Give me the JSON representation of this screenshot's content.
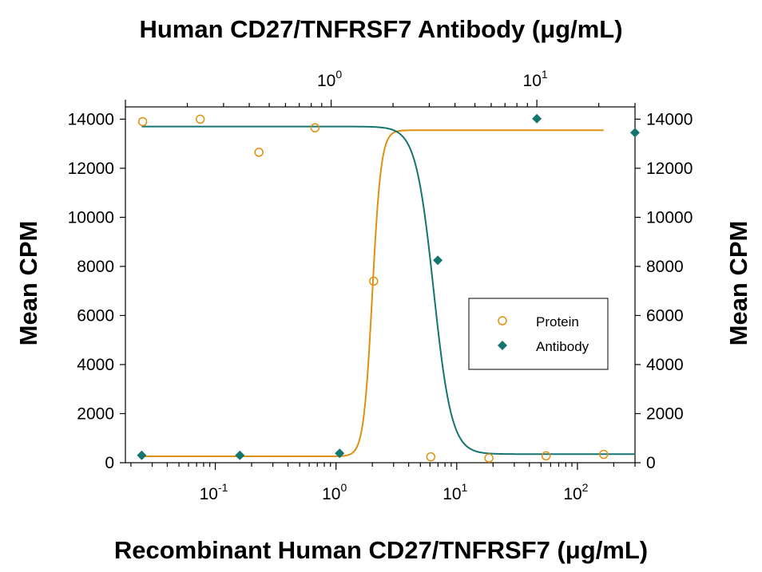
{
  "chart_data": {
    "type": "scatter",
    "title": "Human CD27/TNFRSF7 Antibody (μg/mL)",
    "xlabel": "Recombinant Human CD27/TNFRSF7 (μg/mL)",
    "ylabel": "Mean CPM",
    "ylabel_right": "Mean CPM",
    "x_scale": "log",
    "xlim": [
      0.018,
      300
    ],
    "x_ticks": [
      {
        "base": "10",
        "exp": "-1",
        "value": 0.1
      },
      {
        "base": "10",
        "exp": "0",
        "value": 1
      },
      {
        "base": "10",
        "exp": "1",
        "value": 10
      },
      {
        "base": "10",
        "exp": "2",
        "value": 100
      }
    ],
    "x_top_scale": "log",
    "xlim_top": [
      0.1,
      30
    ],
    "x_top_ticks": [
      {
        "base": "10",
        "exp": "0",
        "value": 1
      },
      {
        "base": "10",
        "exp": "1",
        "value": 10
      }
    ],
    "ylim": [
      0,
      14500
    ],
    "y_ticks": [
      "0",
      "2000",
      "4000",
      "6000",
      "8000",
      "10000",
      "12000",
      "14000"
    ],
    "y_tick_values": [
      0,
      2000,
      4000,
      6000,
      8000,
      10000,
      12000,
      14000
    ],
    "legend_position": "right-middle",
    "grid": false,
    "series": [
      {
        "name": "Protein",
        "axis": "bottom",
        "marker": "open-circle",
        "color": "#E0900F",
        "points": [
          {
            "x": 0.025,
            "y": 13900
          },
          {
            "x": 0.075,
            "y": 14000
          },
          {
            "x": 0.23,
            "y": 12650
          },
          {
            "x": 0.67,
            "y": 13650
          },
          {
            "x": 2.05,
            "y": 7400
          },
          {
            "x": 6.1,
            "y": 240
          },
          {
            "x": 18.5,
            "y": 190
          },
          {
            "x": 55,
            "y": 280
          },
          {
            "x": 165,
            "y": 340
          }
        ],
        "fit": {
          "top": 13550,
          "bottom": 260,
          "ec50": 2.0,
          "hill": -12
        }
      },
      {
        "name": "Antibody",
        "axis": "top",
        "marker": "filled-diamond",
        "color": "#147570",
        "points": [
          {
            "x": 0.12,
            "y": 300
          },
          {
            "x": 0.36,
            "y": 300
          },
          {
            "x": 1.1,
            "y": 380
          },
          {
            "x": 3.3,
            "y": 8250
          },
          {
            "x": 10,
            "y": 14020
          },
          {
            "x": 30,
            "y": 13450
          }
        ],
        "fit": {
          "top": 13700,
          "bottom": 350,
          "ec50": 3.15,
          "hill": 10
        }
      }
    ]
  }
}
